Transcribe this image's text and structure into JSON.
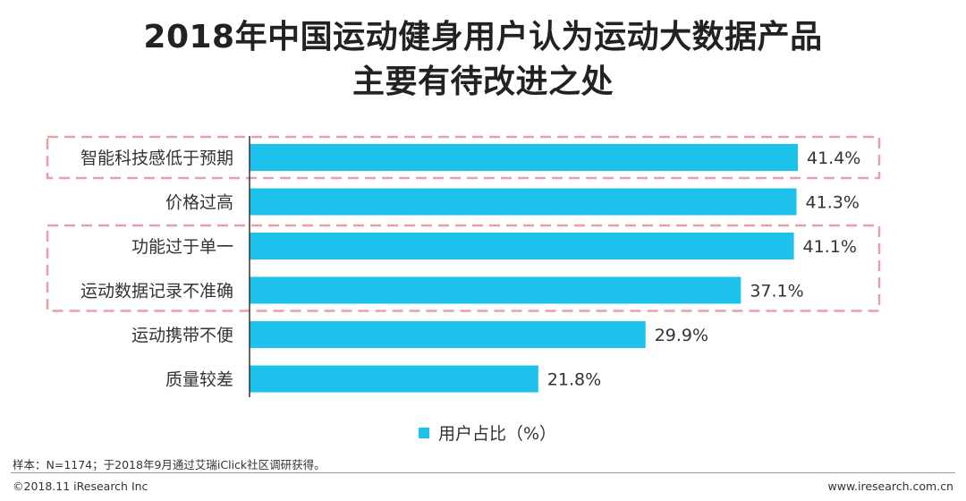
{
  "chart_data": {
    "type": "bar",
    "orientation": "horizontal",
    "title": "2018年中国运动健身用户认为运动大数据产品主要有待改进之处",
    "title_lines": [
      "2018年中国运动健身用户认为运动大数据产品",
      "主要有待改进之处"
    ],
    "categories": [
      "智能科技感低于预期",
      "价格过高",
      "功能过于单一",
      "运动数据记录不准确",
      "运动携带不便",
      "质量较差"
    ],
    "values": [
      41.4,
      41.3,
      41.1,
      37.1,
      29.9,
      21.8
    ],
    "value_labels": [
      "41.4%",
      "41.3%",
      "41.1%",
      "37.1%",
      "29.9%",
      "21.8%"
    ],
    "series_name": "用户占比（%）",
    "xlim": [
      0,
      50
    ],
    "grid": false,
    "legend_position": "bottom-center",
    "highlight_groups": [
      [
        "智能科技感低于预期"
      ],
      [
        "功能过于单一",
        "运动数据记录不准确"
      ]
    ]
  },
  "colors": {
    "bar": "#1cc1ec",
    "highlight": "#e8a0a8",
    "axis": "#333333",
    "text": "#333333"
  },
  "footer": {
    "note": "样本：N=1174；于2018年9月通过艾瑞iClick社区调研获得。",
    "copyright": "©2018.11 iResearch Inc",
    "website": "www.iresearch.com.cn"
  }
}
